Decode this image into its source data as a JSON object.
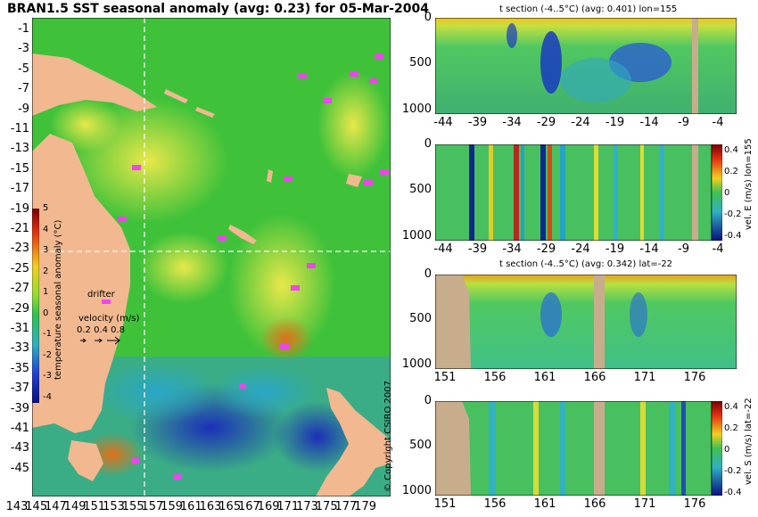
{
  "chart_data": [
    {
      "type": "heatmap",
      "title": "BRAN1.5 SST seasonal anomaly (avg: 0.23) for 05-Mar-2004",
      "xticks": [
        "143",
        "145",
        "147",
        "149",
        "151",
        "153",
        "155",
        "157",
        "159",
        "161",
        "163",
        "165",
        "167",
        "169",
        "171",
        "173",
        "175",
        "177",
        "179"
      ],
      "yticks": [
        "-1",
        "-3",
        "-5",
        "-7",
        "-9",
        "-11",
        "-13",
        "-15",
        "-17",
        "-19",
        "-21",
        "-23",
        "-25",
        "-27",
        "-29",
        "-31",
        "-33",
        "-35",
        "-37",
        "-39",
        "-41",
        "-43",
        "-45"
      ],
      "xlim": [
        143,
        180
      ],
      "ylim": [
        -45,
        0
      ],
      "crosshair": {
        "lon": 155,
        "lat": -22
      },
      "colorbar": {
        "label": "temperature seasonal anomaly (°C)",
        "ticks": [
          "5",
          "4",
          "3",
          "2",
          "1",
          "0",
          "-1",
          "-2",
          "-3",
          "-4"
        ],
        "range": [
          -4,
          5
        ]
      },
      "legend": {
        "drifter_label": "drifter",
        "velocity_label": "velocity (m/s)",
        "velocity_values": "0.2 0.4 0.8"
      }
    },
    {
      "type": "heatmap",
      "title": "t section (-4..5°C) (avg: 0.401) lon=155",
      "xticks": [
        "-44",
        "-39",
        "-34",
        "-29",
        "-24",
        "-19",
        "-14",
        "-9",
        "-4"
      ],
      "yticks": [
        "0",
        "500",
        "1000"
      ],
      "xlim": [
        -45,
        0
      ],
      "ylim": [
        1050,
        0
      ]
    },
    {
      "type": "heatmap",
      "title": "",
      "xticks": [
        "-44",
        "-39",
        "-34",
        "-29",
        "-24",
        "-19",
        "-14",
        "-9",
        "-4"
      ],
      "yticks": [
        "0",
        "500",
        "1000"
      ],
      "xlim": [
        -45,
        0
      ],
      "ylim": [
        1050,
        0
      ],
      "colorbar": {
        "label": "vel. E (m/s) lon=155",
        "ticks": [
          "0.4",
          "0.2",
          "0",
          "-0.2",
          "-0.4"
        ],
        "range": [
          -0.4,
          0.4
        ]
      }
    },
    {
      "type": "heatmap",
      "title": "t section (-4..5°C) (avg: 0.342) lat=-22",
      "xticks": [
        "151",
        "156",
        "161",
        "166",
        "171",
        "176"
      ],
      "yticks": [
        "0",
        "500",
        "1000"
      ],
      "xlim": [
        150,
        180
      ],
      "ylim": [
        1050,
        0
      ]
    },
    {
      "type": "heatmap",
      "title": "",
      "xticks": [
        "151",
        "156",
        "161",
        "166",
        "171",
        "176"
      ],
      "yticks": [
        "0",
        "500",
        "1000"
      ],
      "xlim": [
        150,
        180
      ],
      "ylim": [
        1050,
        0
      ],
      "colorbar": {
        "label": "vel. S (m/s) lat=-22",
        "ticks": [
          "0.4",
          "0.2",
          "0",
          "-0.2",
          "-0.4"
        ],
        "range": [
          -0.4,
          0.4
        ]
      }
    }
  ],
  "copyright": "© Copyright CSIRO 2007"
}
